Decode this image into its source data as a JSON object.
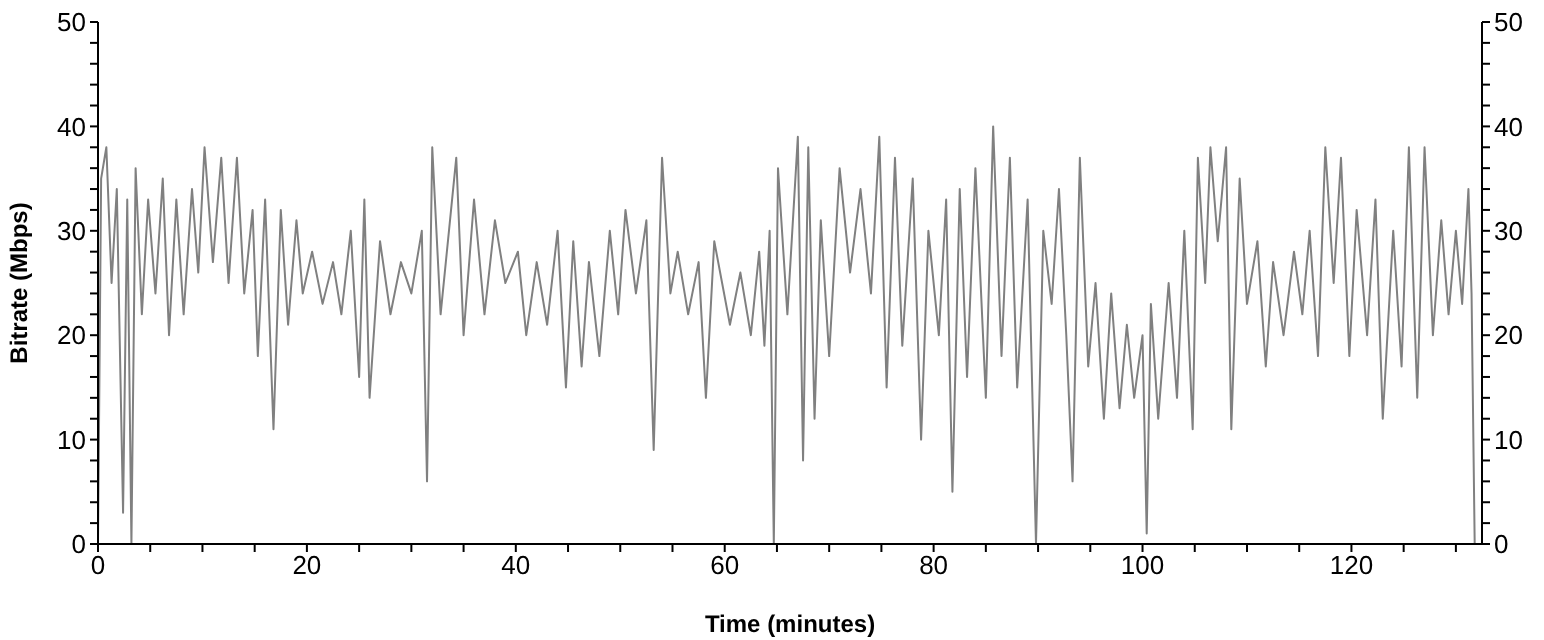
{
  "chart_data": {
    "type": "line",
    "xlabel": "Time (minutes)",
    "ylabel": "Bitrate (Mbps)",
    "xlim": [
      0,
      132.5
    ],
    "xticks": [
      0,
      {
        "value": 5,
        "label": null
      },
      {
        "value": 10,
        "label": null
      },
      {
        "value": 15,
        "label": null
      },
      20,
      {
        "value": 25,
        "label": null
      },
      {
        "value": 30,
        "label": null
      },
      {
        "value": 35,
        "label": null
      },
      40,
      {
        "value": 45,
        "label": null
      },
      {
        "value": 50,
        "label": null
      },
      {
        "value": 55,
        "label": null
      },
      60,
      {
        "value": 65,
        "label": null
      },
      {
        "value": 70,
        "label": null
      },
      {
        "value": 75,
        "label": null
      },
      80,
      {
        "value": 85,
        "label": null
      },
      {
        "value": 90,
        "label": null
      },
      {
        "value": 95,
        "label": null
      },
      100,
      {
        "value": 105,
        "label": null
      },
      {
        "value": 110,
        "label": null
      },
      {
        "value": 115,
        "label": null
      },
      120,
      {
        "value": 125,
        "label": null
      },
      {
        "value": 130,
        "label": null
      }
    ],
    "ylim": [
      0,
      50
    ],
    "yticks": [
      0,
      {
        "value": 2,
        "label": null
      },
      {
        "value": 4,
        "label": null
      },
      {
        "value": 6,
        "label": null
      },
      {
        "value": 8,
        "label": null
      },
      10,
      {
        "value": 12,
        "label": null
      },
      {
        "value": 14,
        "label": null
      },
      {
        "value": 16,
        "label": null
      },
      {
        "value": 18,
        "label": null
      },
      20,
      {
        "value": 22,
        "label": null
      },
      {
        "value": 24,
        "label": null
      },
      {
        "value": 26,
        "label": null
      },
      {
        "value": 28,
        "label": null
      },
      30,
      {
        "value": 32,
        "label": null
      },
      {
        "value": 34,
        "label": null
      },
      {
        "value": 36,
        "label": null
      },
      {
        "value": 38,
        "label": null
      },
      40,
      {
        "value": 42,
        "label": null
      },
      {
        "value": 44,
        "label": null
      },
      {
        "value": 46,
        "label": null
      },
      {
        "value": 48,
        "label": null
      },
      50
    ],
    "y2lim": [
      0,
      50
    ],
    "y2ticks": [
      0,
      {
        "value": 2,
        "label": null
      },
      {
        "value": 4,
        "label": null
      },
      {
        "value": 6,
        "label": null
      },
      {
        "value": 8,
        "label": null
      },
      10,
      {
        "value": 12,
        "label": null
      },
      {
        "value": 14,
        "label": null
      },
      {
        "value": 16,
        "label": null
      },
      {
        "value": 18,
        "label": null
      },
      20,
      {
        "value": 22,
        "label": null
      },
      {
        "value": 24,
        "label": null
      },
      {
        "value": 26,
        "label": null
      },
      {
        "value": 28,
        "label": null
      },
      30,
      {
        "value": 32,
        "label": null
      },
      {
        "value": 34,
        "label": null
      },
      {
        "value": 36,
        "label": null
      },
      {
        "value": 38,
        "label": null
      },
      40,
      {
        "value": 42,
        "label": null
      },
      {
        "value": 44,
        "label": null
      },
      {
        "value": 46,
        "label": null
      },
      {
        "value": 48,
        "label": null
      },
      50
    ],
    "marker": "none",
    "line_style": "solid",
    "series": [
      {
        "color": "#808080",
        "x": [
          0,
          0.3,
          0.8,
          1.3,
          1.8,
          2.4,
          2.8,
          3.2,
          3.6,
          4.2,
          4.8,
          5.5,
          6.2,
          6.8,
          7.5,
          8.2,
          9,
          9.6,
          10.2,
          11,
          11.8,
          12.5,
          13.3,
          14,
          14.8,
          15.3,
          16,
          16.8,
          17.5,
          18.2,
          19,
          19.6,
          20.5,
          21.5,
          22.5,
          23.3,
          24.2,
          25,
          25.5,
          26,
          27,
          28,
          29,
          30,
          31,
          31.5,
          32,
          32.8,
          33.6,
          34.3,
          35,
          36,
          37,
          38,
          39,
          40.2,
          41,
          42,
          43,
          44,
          44.8,
          45.5,
          46.3,
          47,
          48,
          49,
          49.8,
          50.5,
          51.5,
          52.5,
          53.2,
          54,
          54.8,
          55.5,
          56.5,
          57.5,
          58.2,
          59,
          60.5,
          61.5,
          62.5,
          63.3,
          63.8,
          64.3,
          64.7,
          65.1,
          66,
          67,
          67.5,
          68,
          68.6,
          69.2,
          70,
          71,
          72,
          73,
          74,
          74.8,
          75.5,
          76.3,
          77,
          78,
          78.8,
          79.5,
          80.5,
          81.2,
          81.8,
          82.5,
          83.2,
          84,
          85,
          85.7,
          86.5,
          87.3,
          88,
          89,
          89.8,
          90.5,
          91.3,
          92,
          92.7,
          93.3,
          94,
          94.8,
          95.5,
          96.3,
          97,
          97.8,
          98.5,
          99.2,
          100,
          100.4,
          100.8,
          101.5,
          102.5,
          103.3,
          104,
          104.8,
          105.3,
          106,
          106.5,
          107.2,
          108,
          108.5,
          109.3,
          110,
          111,
          111.8,
          112.5,
          113.5,
          114.5,
          115.3,
          116,
          116.8,
          117.5,
          118.3,
          119,
          119.8,
          120.5,
          121.5,
          122.3,
          123,
          124,
          124.8,
          125.5,
          126.3,
          127,
          127.8,
          128.6,
          129.3,
          130,
          130.6,
          131.2,
          131.5,
          131.8
        ],
        "values": [
          0,
          35,
          38,
          25,
          34,
          3,
          33,
          0,
          36,
          22,
          33,
          24,
          35,
          20,
          33,
          22,
          34,
          26,
          38,
          27,
          37,
          25,
          37,
          24,
          32,
          18,
          33,
          11,
          32,
          21,
          31,
          24,
          28,
          23,
          27,
          22,
          30,
          16,
          33,
          14,
          29,
          22,
          27,
          24,
          30,
          6,
          38,
          22,
          30,
          37,
          20,
          33,
          22,
          31,
          25,
          28,
          20,
          27,
          21,
          30,
          15,
          29,
          17,
          27,
          18,
          30,
          22,
          32,
          24,
          31,
          9,
          37,
          24,
          28,
          22,
          27,
          14,
          29,
          21,
          26,
          20,
          28,
          19,
          30,
          0,
          36,
          22,
          39,
          8,
          38,
          12,
          31,
          18,
          36,
          26,
          34,
          24,
          39,
          15,
          37,
          19,
          35,
          10,
          30,
          20,
          33,
          5,
          34,
          16,
          36,
          14,
          40,
          18,
          37,
          15,
          33,
          0,
          30,
          23,
          34,
          20,
          6,
          37,
          17,
          25,
          12,
          24,
          13,
          21,
          14,
          20,
          1,
          23,
          12,
          25,
          14,
          30,
          11,
          37,
          25,
          38,
          29,
          38,
          11,
          35,
          23,
          29,
          17,
          27,
          20,
          28,
          22,
          30,
          18,
          38,
          25,
          37,
          18,
          32,
          20,
          33,
          12,
          30,
          17,
          38,
          14,
          38,
          20,
          31,
          22,
          30,
          23,
          34,
          24,
          0
        ]
      }
    ]
  }
}
